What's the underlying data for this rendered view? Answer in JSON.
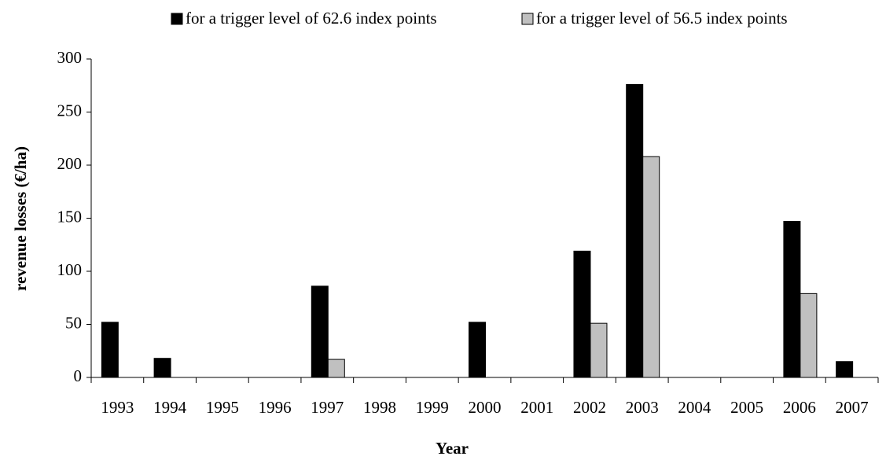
{
  "chart_data": {
    "type": "bar",
    "x_label": "Year",
    "y_label": "revenue losses (€/ha)",
    "categories": [
      "1993",
      "1994",
      "1995",
      "1996",
      "1997",
      "1998",
      "1999",
      "2000",
      "2001",
      "2002",
      "2003",
      "2004",
      "2005",
      "2006",
      "2007"
    ],
    "series": [
      {
        "name": "for a trigger level of 62.6 index points",
        "color": "#000000",
        "values": [
          52,
          18,
          0,
          0,
          86,
          0,
          0,
          52,
          0,
          119,
          276,
          0,
          0,
          147,
          15
        ]
      },
      {
        "name": "for a trigger level of 56.5 index points",
        "color": "#c0c0c0",
        "values": [
          0,
          0,
          0,
          0,
          17,
          0,
          0,
          0,
          0,
          51,
          208,
          0,
          0,
          79,
          0
        ]
      }
    ],
    "ylim": [
      0,
      300
    ],
    "yticks": [
      0,
      50,
      100,
      150,
      200,
      250,
      300
    ],
    "legend": "top",
    "grid": false
  }
}
